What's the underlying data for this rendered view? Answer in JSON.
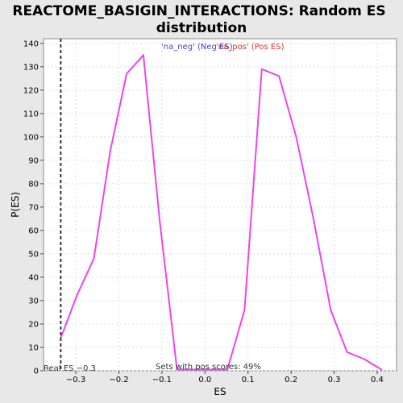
{
  "chart_data": {
    "type": "line",
    "title_lines": [
      "REACTOME_BASIGIN_INTERACTIONS: Random ES",
      "distribution"
    ],
    "xlabel": "ES",
    "ylabel": "P(ES)",
    "xlim": [
      -0.375,
      0.445
    ],
    "ylim": [
      0,
      142
    ],
    "x_ticks": [
      -0.3,
      -0.2,
      -0.1,
      0.0,
      0.1,
      0.2,
      0.3,
      0.4
    ],
    "x_tick_labels": [
      "−0.3",
      "−0.2",
      "−0.1",
      "0.0",
      "0.1",
      "0.2",
      "0.3",
      "0.4"
    ],
    "y_ticks": [
      0,
      10,
      20,
      30,
      40,
      50,
      60,
      70,
      80,
      90,
      100,
      110,
      120,
      130,
      140
    ],
    "y_tick_labels": [
      "0",
      "10",
      "20",
      "30",
      "40",
      "50",
      "60",
      "70",
      "80",
      "90",
      "100",
      "110",
      "120",
      "130",
      "140"
    ],
    "grid": true,
    "series": [
      {
        "color": "#ee44ee",
        "x": [
          -0.335,
          -0.298,
          -0.258,
          -0.22,
          -0.182,
          -0.143,
          -0.105,
          -0.065,
          -0.028,
          0.012,
          0.052,
          0.092,
          0.132,
          0.172,
          0.212,
          0.252,
          0.292,
          0.33,
          0.37,
          0.41
        ],
        "y": [
          14,
          32,
          48,
          94,
          127,
          135,
          64,
          0.5,
          0.5,
          0.5,
          0.5,
          26,
          129,
          126,
          100,
          65,
          26,
          8,
          5,
          0.5
        ]
      }
    ],
    "legend": [
      {
        "label": "'na_neg' (Neg ES)",
        "color": "#4444cc"
      },
      {
        "label": "'na_pos' (Pos ES)",
        "color": "#dd3333"
      }
    ],
    "vline": {
      "x": -0.335,
      "style": "dashed",
      "color": "#333333"
    },
    "annotations": {
      "real_es": "Real ES −0.3",
      "pos_scores": "Sets with pos scores: 49%"
    }
  }
}
